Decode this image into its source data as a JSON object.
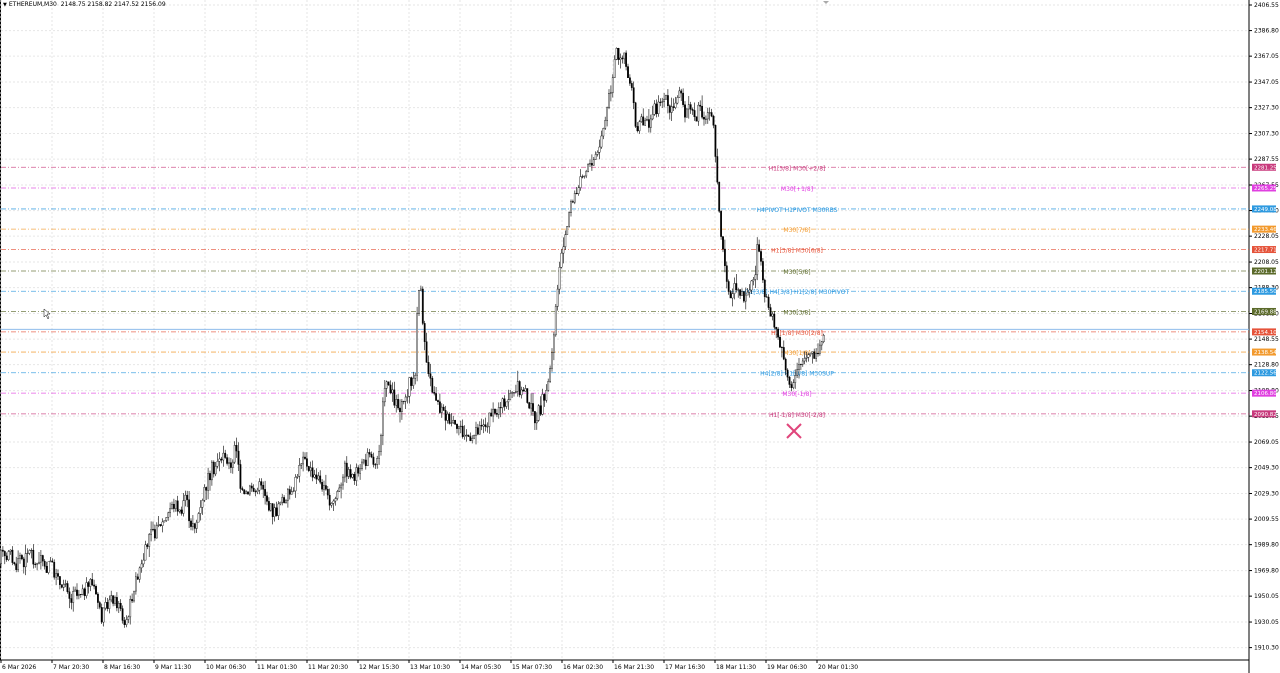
{
  "header": {
    "symbol": "ETHEREUM,M30",
    "ohlc": "2148.75 2158.82 2147.52 2156.09"
  },
  "colors": {
    "background": "#ffffff",
    "grid": "#e6e6e6",
    "candle": "#000000",
    "current_price": "#e8a0a0",
    "cross_marker": "#e0457b"
  },
  "chart_data": {
    "type": "candlestick",
    "title": "ETHEREUM,M30",
    "ylim": [
      1910.0,
      2406.55
    ],
    "y_ticks": [
      "2406.55",
      "2386.80",
      "2367.05",
      "2347.05",
      "2327.30",
      "2307.30",
      "2287.55",
      "2267.55",
      "2247.80",
      "2228.05",
      "2208.05",
      "2188.30",
      "2168.30",
      "2148.55",
      "2128.80",
      "2108.80",
      "2089.05",
      "2069.05",
      "2049.30",
      "2029.30",
      "2009.55",
      "1989.80",
      "1969.80",
      "1950.05",
      "1930.05",
      "1910.30"
    ],
    "x_ticks": [
      "6 Mar 2026",
      "7 Mar 20:30",
      "8 Mar 16:30",
      "9 Mar 11:30",
      "10 Mar 06:30",
      "11 Mar 01:30",
      "11 Mar 20:30",
      "12 Mar 15:30",
      "13 Mar 10:30",
      "14 Mar 05:30",
      "15 Mar 07:30",
      "16 Mar 02:30",
      "16 Mar 21:30",
      "17 Mar 16:30",
      "18 Mar 11:30",
      "19 Mar 06:30",
      "20 Mar 01:30"
    ],
    "price_path": [
      [
        0,
        1975
      ],
      [
        3,
        1990
      ],
      [
        6,
        1980
      ],
      [
        10,
        1985
      ],
      [
        15,
        1972
      ],
      [
        20,
        1982
      ],
      [
        25,
        1976
      ],
      [
        30,
        1988
      ],
      [
        35,
        1972
      ],
      [
        40,
        1982
      ],
      [
        45,
        1970
      ],
      [
        50,
        1980
      ],
      [
        55,
        1966
      ],
      [
        60,
        1960
      ],
      [
        65,
        1958
      ],
      [
        70,
        1945
      ],
      [
        75,
        1952
      ],
      [
        80,
        1948
      ],
      [
        85,
        1955
      ],
      [
        90,
        1962
      ],
      [
        95,
        1958
      ],
      [
        98,
        1945
      ],
      [
        102,
        1935
      ],
      [
        106,
        1940
      ],
      [
        110,
        1948
      ],
      [
        115,
        1945
      ],
      [
        120,
        1942
      ],
      [
        124,
        1928
      ],
      [
        128,
        1935
      ],
      [
        132,
        1950
      ],
      [
        136,
        1962
      ],
      [
        140,
        1975
      ],
      [
        145,
        1985
      ],
      [
        150,
        1995
      ],
      [
        155,
        2000
      ],
      [
        160,
        2005
      ],
      [
        165,
        2010
      ],
      [
        170,
        2018
      ],
      [
        175,
        2022
      ],
      [
        180,
        2015
      ],
      [
        185,
        2030
      ],
      [
        190,
        2010
      ],
      [
        195,
        2000
      ],
      [
        200,
        2020
      ],
      [
        205,
        2035
      ],
      [
        210,
        2045
      ],
      [
        215,
        2050
      ],
      [
        220,
        2055
      ],
      [
        225,
        2060
      ],
      [
        230,
        2048
      ],
      [
        235,
        2065
      ],
      [
        238,
        2055
      ],
      [
        240,
        2040
      ],
      [
        245,
        2030
      ],
      [
        250,
        2035
      ],
      [
        255,
        2030
      ],
      [
        260,
        2038
      ],
      [
        265,
        2026
      ],
      [
        270,
        2018
      ],
      [
        275,
        2015
      ],
      [
        280,
        2022
      ],
      [
        285,
        2025
      ],
      [
        290,
        2030
      ],
      [
        295,
        2040
      ],
      [
        300,
        2050
      ],
      [
        305,
        2055
      ],
      [
        310,
        2048
      ],
      [
        315,
        2045
      ],
      [
        320,
        2040
      ],
      [
        325,
        2030
      ],
      [
        330,
        2022
      ],
      [
        335,
        2025
      ],
      [
        340,
        2038
      ],
      [
        345,
        2050
      ],
      [
        350,
        2045
      ],
      [
        355,
        2040
      ],
      [
        360,
        2052
      ],
      [
        365,
        2055
      ],
      [
        370,
        2058
      ],
      [
        375,
        2050
      ],
      [
        380,
        2060
      ],
      [
        385,
        2118
      ],
      [
        390,
        2108
      ],
      [
        395,
        2100
      ],
      [
        400,
        2092
      ],
      [
        405,
        2100
      ],
      [
        410,
        2115
      ],
      [
        415,
        2120
      ],
      [
        418,
        2185
      ],
      [
        421,
        2190
      ],
      [
        424,
        2150
      ],
      [
        428,
        2120
      ],
      [
        432,
        2110
      ],
      [
        436,
        2100
      ],
      [
        440,
        2095
      ],
      [
        445,
        2090
      ],
      [
        450,
        2088
      ],
      [
        455,
        2085
      ],
      [
        460,
        2080
      ],
      [
        465,
        2075
      ],
      [
        470,
        2073
      ],
      [
        475,
        2075
      ],
      [
        480,
        2078
      ],
      [
        485,
        2082
      ],
      [
        490,
        2088
      ],
      [
        495,
        2090
      ],
      [
        500,
        2095
      ],
      [
        505,
        2100
      ],
      [
        510,
        2105
      ],
      [
        515,
        2110
      ],
      [
        520,
        2108
      ],
      [
        525,
        2110
      ],
      [
        530,
        2095
      ],
      [
        535,
        2088
      ],
      [
        540,
        2095
      ],
      [
        545,
        2105
      ],
      [
        550,
        2125
      ],
      [
        553,
        2140
      ],
      [
        556,
        2175
      ],
      [
        560,
        2205
      ],
      [
        565,
        2230
      ],
      [
        570,
        2250
      ],
      [
        575,
        2262
      ],
      [
        580,
        2268
      ],
      [
        585,
        2275
      ],
      [
        590,
        2285
      ],
      [
        595,
        2290
      ],
      [
        600,
        2300
      ],
      [
        605,
        2318
      ],
      [
        608,
        2335
      ],
      [
        612,
        2348
      ],
      [
        616,
        2378
      ],
      [
        620,
        2360
      ],
      [
        624,
        2368
      ],
      [
        628,
        2350
      ],
      [
        632,
        2340
      ],
      [
        636,
        2310
      ],
      [
        640,
        2318
      ],
      [
        645,
        2315
      ],
      [
        650,
        2320
      ],
      [
        655,
        2325
      ],
      [
        660,
        2330
      ],
      [
        665,
        2335
      ],
      [
        670,
        2328
      ],
      [
        675,
        2332
      ],
      [
        680,
        2336
      ],
      [
        685,
        2325
      ],
      [
        690,
        2330
      ],
      [
        695,
        2320
      ],
      [
        700,
        2325
      ],
      [
        705,
        2318
      ],
      [
        710,
        2325
      ],
      [
        714,
        2310
      ],
      [
        716,
        2278
      ],
      [
        718,
        2260
      ],
      [
        720,
        2240
      ],
      [
        723,
        2215
      ],
      [
        726,
        2190
      ],
      [
        730,
        2180
      ],
      [
        735,
        2195
      ],
      [
        740,
        2185
      ],
      [
        745,
        2180
      ],
      [
        750,
        2190
      ],
      [
        755,
        2198
      ],
      [
        758,
        2225
      ],
      [
        762,
        2195
      ],
      [
        766,
        2180
      ],
      [
        770,
        2168
      ],
      [
        774,
        2160
      ],
      [
        778,
        2150
      ],
      [
        782,
        2140
      ],
      [
        785,
        2130
      ],
      [
        788,
        2120
      ],
      [
        791,
        2110
      ],
      [
        795,
        2118
      ],
      [
        800,
        2128
      ],
      [
        805,
        2135
      ],
      [
        810,
        2140
      ],
      [
        815,
        2135
      ],
      [
        820,
        2145
      ],
      [
        824,
        2150
      ]
    ],
    "levels": [
      {
        "label": "H1[5/8] M30[+2/8]",
        "price": 2281.25,
        "color": "#c83a7c",
        "tag": "2281.25"
      },
      {
        "label": "M30[+1/8]",
        "price": 2265.25,
        "color": "#e040e0",
        "tag": "2265.25"
      },
      {
        "label": "H4PIVOT H1PIVOT M30RBS",
        "price": 2249.08,
        "color": "#2e9ae0",
        "tag": "2249.08"
      },
      {
        "label": "M30[7/8]",
        "price": 2233.46,
        "color": "#f29a2e",
        "tag": "2233.46"
      },
      {
        "label": "H1[3/8] M30[6/8]",
        "price": 2217.71,
        "color": "#e5533a",
        "tag": "2217.71"
      },
      {
        "label": "M30[5/8]",
        "price": 2201.12,
        "color": "#5b6a2a",
        "tag": "2201.12"
      },
      {
        "label": "D1[3/8] H4[3/8] H1[2/8] M30PIVOT",
        "price": 2185.5,
        "color": "#2e9ae0",
        "tag": "2185.50"
      },
      {
        "label": "M30[3/8]",
        "price": 2169.88,
        "color": "#5b6a2a",
        "tag": "2169.88"
      },
      {
        "label": "H1[1/8] M30[2/8]",
        "price": 2154.1,
        "color": "#e5533a",
        "tag": "2154.10"
      },
      {
        "label": "M30[1/8]",
        "price": 2138.54,
        "color": "#f29a2e",
        "tag": "2138.54"
      },
      {
        "label": "H4[2/8] H1[0/8] M30SUP",
        "price": 2122.56,
        "color": "#2e9ae0",
        "tag": "2122.56"
      },
      {
        "label": "M30[-1/8]",
        "price": 2106.8,
        "color": "#e040e0",
        "tag": "2106.80"
      },
      {
        "label": "H1[-1/8] M30[-2/8]",
        "price": 2090.82,
        "color": "#c83a7c",
        "tag": "2090.82"
      }
    ],
    "current_price": "2156.09",
    "grid": true
  }
}
